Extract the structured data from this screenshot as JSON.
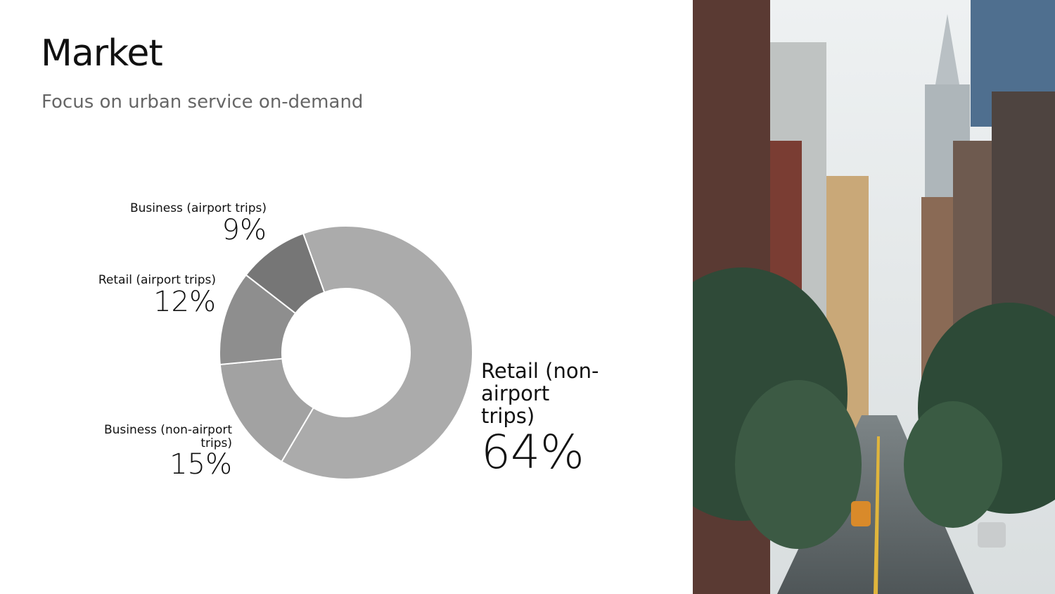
{
  "chart_data": {
    "type": "donut",
    "title": "Market",
    "subtitle": "Focus on urban service on-demand",
    "categories": [
      "Retail (non-airport trips)",
      "Business (non-airport trips)",
      "Retail (airport trips)",
      "Business (airport trips)"
    ],
    "values": [
      64,
      15,
      12,
      9
    ],
    "value_labels": [
      "64%",
      "15%",
      "12%",
      "9%"
    ],
    "colors": [
      "#ababab",
      "#a2a2a2",
      "#8e8e8e",
      "#767676"
    ]
  }
}
